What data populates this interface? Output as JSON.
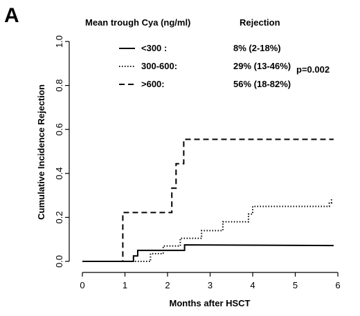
{
  "panel_label": "A",
  "chart_data": {
    "type": "line",
    "title": "",
    "xlabel": "Months after HSCT",
    "ylabel": "Cumulative Incidence Rejection",
    "xlim": [
      0,
      6
    ],
    "ylim": [
      0,
      1.0
    ],
    "x_ticks": [
      "0",
      "1",
      "2",
      "3",
      "4",
      "5",
      "6"
    ],
    "y_ticks": [
      "0.0",
      "0.2",
      "0.4",
      "0.6",
      "0.8",
      "1.0"
    ],
    "legend_header_left": "Mean trough Cya (ng/ml)",
    "legend_header_right": "Rejection",
    "p_value": "p=0.002",
    "legend_placement": "top",
    "grid": false,
    "series": [
      {
        "name": "<300 :",
        "rejection": "8%   (2-18%)",
        "style": "solid",
        "color": "#000000",
        "points": [
          [
            0,
            0
          ],
          [
            1.2,
            0
          ],
          [
            1.2,
            0.025
          ],
          [
            1.3,
            0.025
          ],
          [
            1.3,
            0.05
          ],
          [
            2.4,
            0.05
          ],
          [
            2.4,
            0.075
          ],
          [
            5.9,
            0.072
          ]
        ]
      },
      {
        "name": "300-600:",
        "rejection": "29% (13-46%)",
        "style": "dotted",
        "color": "#000000",
        "points": [
          [
            0,
            0
          ],
          [
            1.6,
            0
          ],
          [
            1.6,
            0.035
          ],
          [
            1.9,
            0.035
          ],
          [
            1.9,
            0.07
          ],
          [
            2.3,
            0.07
          ],
          [
            2.3,
            0.105
          ],
          [
            2.8,
            0.105
          ],
          [
            2.8,
            0.14
          ],
          [
            3.3,
            0.14
          ],
          [
            3.3,
            0.18
          ],
          [
            3.9,
            0.18
          ],
          [
            3.9,
            0.215
          ],
          [
            4.0,
            0.215
          ],
          [
            4.0,
            0.25
          ],
          [
            5.8,
            0.25
          ],
          [
            5.8,
            0.265
          ],
          [
            5.85,
            0.265
          ],
          [
            5.85,
            0.285
          ]
        ]
      },
      {
        "name": ">600:",
        "rejection": "56% (18-82%)",
        "style": "dashed",
        "color": "#000000",
        "points": [
          [
            0,
            0
          ],
          [
            0.95,
            0
          ],
          [
            0.95,
            0.222
          ],
          [
            2.1,
            0.222
          ],
          [
            2.1,
            0.333
          ],
          [
            2.2,
            0.333
          ],
          [
            2.2,
            0.444
          ],
          [
            2.38,
            0.444
          ],
          [
            2.38,
            0.555
          ],
          [
            5.9,
            0.555
          ]
        ]
      }
    ]
  }
}
